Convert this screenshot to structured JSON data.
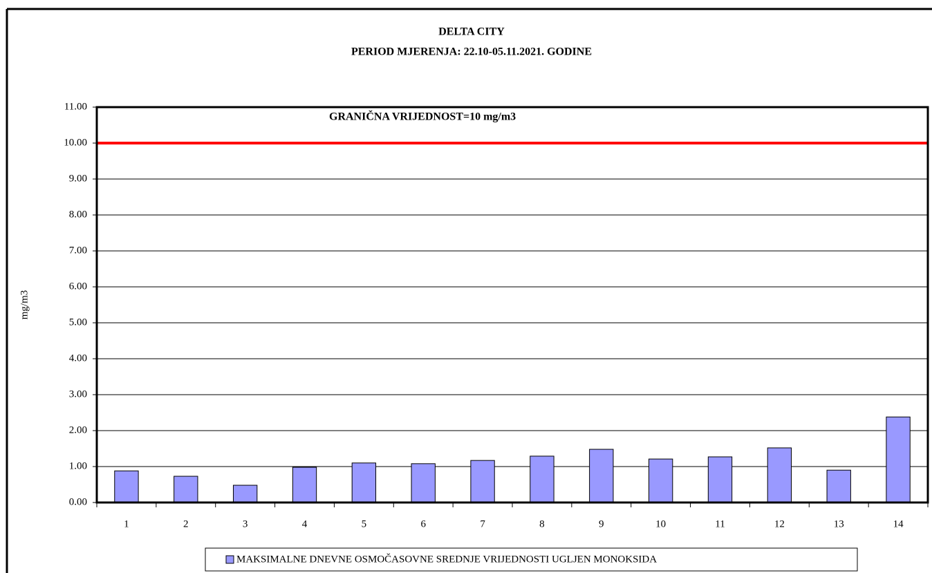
{
  "chart_data": {
    "type": "bar",
    "title": "DELTA CITY",
    "subtitle": "PERIOD MJERENJA: 22.10-05.11.2021. GODINE",
    "y_label": "mg/m3",
    "categories": [
      "1",
      "2",
      "3",
      "4",
      "5",
      "6",
      "7",
      "8",
      "9",
      "10",
      "11",
      "12",
      "13",
      "14"
    ],
    "series": [
      {
        "name": "MAKSIMALNE DNEVNE OSMOČASOVNE SREDNJE VRIJEDNOSTI UGLJEN MONOKSIDA",
        "color": "#9999ff",
        "values": [
          0.88,
          0.73,
          0.48,
          0.98,
          1.1,
          1.08,
          1.17,
          1.29,
          1.48,
          1.21,
          1.27,
          1.52,
          0.9,
          2.38
        ]
      }
    ],
    "limit_line": {
      "value": 10,
      "label": "GRANIČNA VRIJEDNOST=10 mg/m3",
      "color": "#ff0000"
    },
    "ylim": [
      0,
      11
    ],
    "yticks": [
      {
        "value": 0,
        "label": "0.00"
      },
      {
        "value": 1,
        "label": "1.00"
      },
      {
        "value": 2,
        "label": "2.00"
      },
      {
        "value": 3,
        "label": "3.00"
      },
      {
        "value": 4,
        "label": "4.00"
      },
      {
        "value": 5,
        "label": "5.00"
      },
      {
        "value": 6,
        "label": "6.00"
      },
      {
        "value": 7,
        "label": "7.00"
      },
      {
        "value": 8,
        "label": "8.00"
      },
      {
        "value": 9,
        "label": "9.00"
      },
      {
        "value": 10,
        "label": "10.00"
      },
      {
        "value": 11,
        "label": "11.00"
      }
    ],
    "grid": true
  }
}
